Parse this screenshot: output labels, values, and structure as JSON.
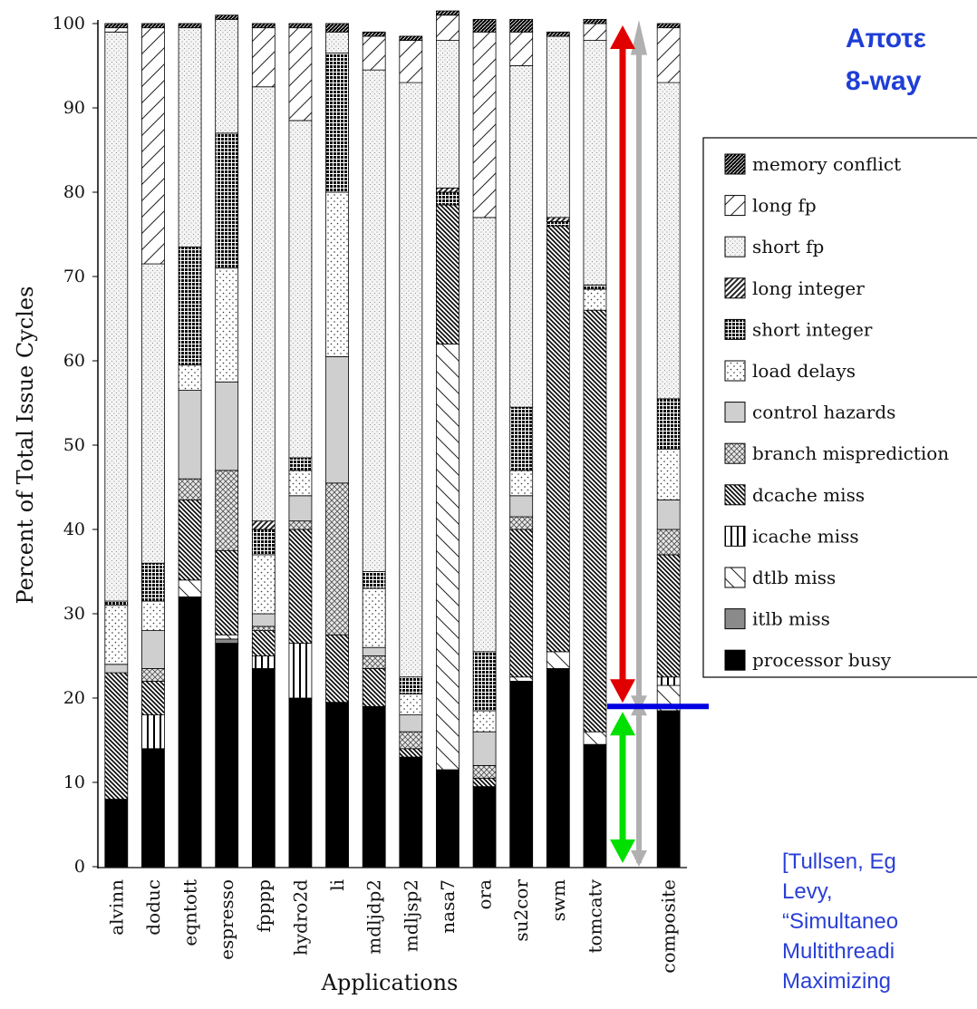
{
  "slide": {
    "title_lines": [
      "Αποτε",
      "8-way"
    ],
    "citation_lines": [
      "[Tullsen, Eg",
      "Levy,",
      "“Simultaneo",
      "Multithreadi",
      "Maximizing"
    ]
  },
  "chart_data": {
    "type": "bar",
    "stacked": true,
    "title": "",
    "xlabel": "Applications",
    "ylabel": "Percent of Total Issue Cycles",
    "ylim": [
      0,
      100
    ],
    "yticks": [
      "0",
      "10",
      "20",
      "30",
      "40",
      "50",
      "60",
      "70",
      "80",
      "90",
      "100"
    ],
    "grid": false,
    "legend_position": "right",
    "categories": [
      "alvinn",
      "doduc",
      "eqntott",
      "espresso",
      "fpppp",
      "hydro2d",
      "li",
      "mdljdp2",
      "mdljsp2",
      "nasa7",
      "ora",
      "su2cor",
      "swm",
      "tomcatv",
      "",
      "composite"
    ],
    "series": [
      {
        "name": "processor busy",
        "color": "#000000",
        "pattern": "solid-black",
        "values": [
          8,
          14,
          32,
          26.5,
          23.5,
          20,
          19.5,
          19,
          13,
          11.5,
          9.5,
          22,
          23.5,
          14.5,
          0,
          18.5
        ]
      },
      {
        "name": "itlb miss",
        "color": "#808080",
        "pattern": "solid-gray",
        "values": [
          0,
          0,
          0,
          0.5,
          0,
          0,
          0,
          0,
          0,
          0,
          0,
          0,
          0,
          0,
          0,
          0
        ]
      },
      {
        "name": "dtlb miss",
        "color": "#ffffff",
        "pattern": "diag-back",
        "values": [
          0,
          0,
          2,
          0.5,
          0,
          0,
          0,
          0,
          0,
          50.5,
          0,
          0.5,
          2,
          1.5,
          0,
          3
        ]
      },
      {
        "name": "icache miss",
        "color": "#ffffff",
        "pattern": "vertical",
        "values": [
          0,
          4,
          0,
          0,
          1.5,
          6.5,
          0,
          0,
          0,
          0,
          0,
          0,
          0,
          0,
          0,
          1
        ]
      },
      {
        "name": "dcache miss",
        "color": "#3a3a3a",
        "pattern": "dense-diag",
        "values": [
          15,
          4,
          9.5,
          10,
          3,
          13.5,
          8,
          4.5,
          1,
          16.5,
          1,
          17.5,
          50.5,
          50,
          0,
          14.5
        ]
      },
      {
        "name": "branch misprediction",
        "color": "#bdbdbd",
        "pattern": "crosshatch",
        "values": [
          0,
          1.5,
          2.5,
          9.5,
          0.5,
          1,
          18,
          1.5,
          2,
          0,
          1.5,
          1.5,
          0,
          0,
          0,
          3
        ]
      },
      {
        "name": "control hazards",
        "color": "#cfcfcf",
        "pattern": "solid-light",
        "values": [
          1,
          4.5,
          10.5,
          10.5,
          1.5,
          3,
          15,
          1,
          2,
          0,
          4,
          2.5,
          0,
          0,
          0,
          3.5
        ]
      },
      {
        "name": "load delays",
        "color": "#ffffff",
        "pattern": "dots",
        "values": [
          7,
          3.5,
          3,
          13.5,
          7,
          3,
          19.5,
          7,
          2.5,
          0,
          2.5,
          3,
          0,
          2.5,
          0,
          6
        ]
      },
      {
        "name": "short integer",
        "color": "#222222",
        "pattern": "grid-dense",
        "values": [
          0.5,
          4.5,
          14,
          16,
          3,
          1.5,
          16.5,
          2,
          2,
          1.5,
          7,
          7.5,
          0.5,
          0.5,
          0,
          6
        ]
      },
      {
        "name": "long integer",
        "color": "#4d4d4d",
        "pattern": "diag-thick",
        "values": [
          0,
          0,
          0,
          0,
          1,
          0,
          0,
          0,
          0,
          0.5,
          0,
          0,
          0.5,
          0,
          0,
          0
        ]
      },
      {
        "name": "short fp",
        "color": "#f2f2f2",
        "pattern": "fine-dots",
        "values": [
          67.5,
          35.5,
          26,
          13.5,
          51.5,
          40,
          2.5,
          59.5,
          70.5,
          17.5,
          51.5,
          40.5,
          21.5,
          29,
          0,
          37.5
        ]
      },
      {
        "name": "long fp",
        "color": "#ffffff",
        "pattern": "diag-fwd",
        "values": [
          0.5,
          28,
          0,
          0,
          7,
          11,
          0,
          4,
          5,
          3,
          22,
          4,
          0,
          2,
          0,
          6.5
        ]
      },
      {
        "name": "memory conflict",
        "color": "#1a1a1a",
        "pattern": "diag-black",
        "values": [
          0.5,
          0.5,
          0.5,
          0.5,
          0.5,
          0.5,
          1,
          0.5,
          0.5,
          0.5,
          1.5,
          1.5,
          0.5,
          0.5,
          0,
          0.5
        ]
      }
    ],
    "legend_order": [
      "memory conflict",
      "long fp",
      "short fp",
      "long integer",
      "short integer",
      "load delays",
      "control hazards",
      "branch misprediction",
      "dcache miss",
      "icache miss",
      "dtlb miss",
      "itlb miss",
      "processor busy"
    ],
    "annotations": {
      "red_arrow": {
        "color": "#e00000",
        "from": 19,
        "to": 100
      },
      "green_arrow": {
        "color": "#00e000",
        "from": 0,
        "to": 19
      },
      "gray_arrows": {
        "color": "#b0b0b0"
      },
      "blue_line": {
        "color": "#0000e0",
        "value": 19
      }
    }
  }
}
